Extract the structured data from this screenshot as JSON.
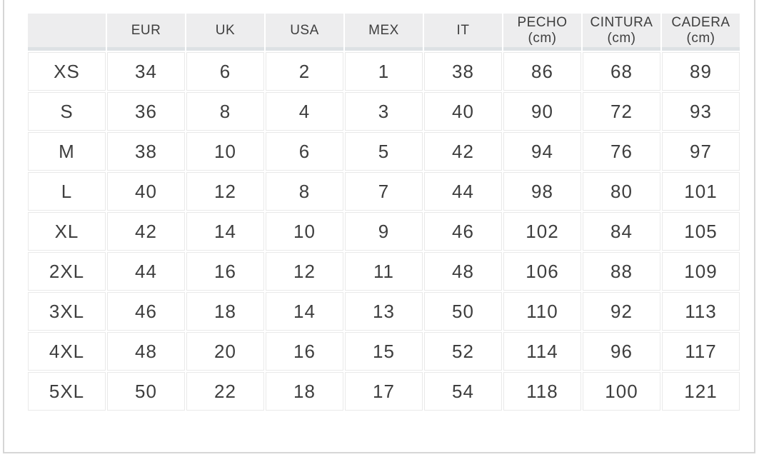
{
  "chart_data": {
    "type": "table",
    "columns": [
      {
        "label": "",
        "sub": ""
      },
      {
        "label": "EUR",
        "sub": ""
      },
      {
        "label": "UK",
        "sub": ""
      },
      {
        "label": "USA",
        "sub": ""
      },
      {
        "label": "MEX",
        "sub": ""
      },
      {
        "label": "IT",
        "sub": ""
      },
      {
        "label": "PECHO",
        "sub": "(cm)"
      },
      {
        "label": "CINTURA",
        "sub": "(cm)"
      },
      {
        "label": "CADERA",
        "sub": "(cm)"
      }
    ],
    "rows": [
      {
        "size": "XS",
        "values": [
          "34",
          "6",
          "2",
          "1",
          "38",
          "86",
          "68",
          "89"
        ]
      },
      {
        "size": "S",
        "values": [
          "36",
          "8",
          "4",
          "3",
          "40",
          "90",
          "72",
          "93"
        ]
      },
      {
        "size": "M",
        "values": [
          "38",
          "10",
          "6",
          "5",
          "42",
          "94",
          "76",
          "97"
        ]
      },
      {
        "size": "L",
        "values": [
          "40",
          "12",
          "8",
          "7",
          "44",
          "98",
          "80",
          "101"
        ]
      },
      {
        "size": "XL",
        "values": [
          "42",
          "14",
          "10",
          "9",
          "46",
          "102",
          "84",
          "105"
        ]
      },
      {
        "size": "2XL",
        "values": [
          "44",
          "16",
          "12",
          "11",
          "48",
          "106",
          "88",
          "109"
        ]
      },
      {
        "size": "3XL",
        "values": [
          "46",
          "18",
          "14",
          "13",
          "50",
          "110",
          "92",
          "113"
        ]
      },
      {
        "size": "4XL",
        "values": [
          "48",
          "20",
          "16",
          "15",
          "52",
          "114",
          "96",
          "117"
        ]
      },
      {
        "size": "5XL",
        "values": [
          "50",
          "22",
          "18",
          "17",
          "54",
          "118",
          "100",
          "121"
        ]
      }
    ]
  },
  "colors": {
    "header_bg": "#ededee",
    "header_divider": "#dde1e4",
    "cell_border": "#e9e9e9",
    "text": "#3e3e3e",
    "page_edge": "#d6d6d6"
  }
}
